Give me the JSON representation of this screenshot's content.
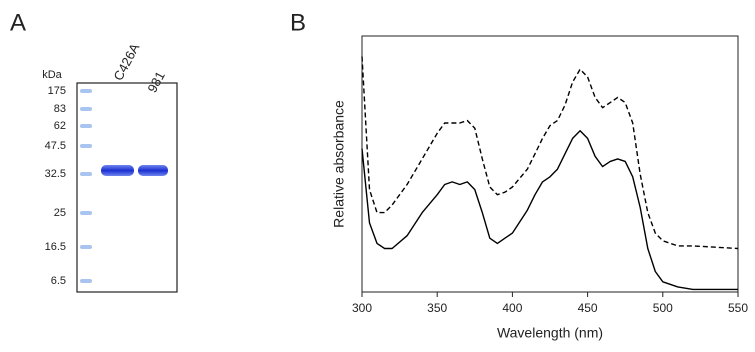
{
  "panel_a": {
    "label": "A",
    "unit": "kDa",
    "markers": [
      "175",
      "83",
      "62",
      "47.5",
      "32.5",
      "25",
      "16.5",
      "6.5"
    ],
    "lanes": [
      "C426A",
      "981"
    ]
  },
  "panel_b_label": "B",
  "chart_data": {
    "type": "line",
    "xlabel": "Wavelength (nm)",
    "ylabel": "Relative absorbance",
    "x": [
      300,
      305,
      310,
      315,
      320,
      330,
      340,
      350,
      355,
      360,
      365,
      370,
      375,
      380,
      385,
      390,
      395,
      400,
      410,
      415,
      420,
      425,
      430,
      435,
      440,
      445,
      450,
      455,
      460,
      465,
      470,
      475,
      480,
      485,
      490,
      495,
      500,
      510,
      520,
      550
    ],
    "series": [
      {
        "color": "#000000",
        "dash": "dashed",
        "values": [
          0.92,
          0.4,
          0.31,
          0.31,
          0.34,
          0.42,
          0.52,
          0.62,
          0.66,
          0.66,
          0.66,
          0.67,
          0.64,
          0.52,
          0.41,
          0.38,
          0.39,
          0.41,
          0.48,
          0.54,
          0.6,
          0.65,
          0.67,
          0.73,
          0.82,
          0.87,
          0.84,
          0.76,
          0.72,
          0.74,
          0.76,
          0.74,
          0.66,
          0.46,
          0.31,
          0.23,
          0.2,
          0.18,
          0.18,
          0.17
        ]
      },
      {
        "color": "#000000",
        "dash": "solid",
        "values": [
          0.56,
          0.27,
          0.19,
          0.17,
          0.17,
          0.22,
          0.31,
          0.38,
          0.42,
          0.43,
          0.42,
          0.43,
          0.4,
          0.31,
          0.21,
          0.19,
          0.21,
          0.23,
          0.32,
          0.38,
          0.43,
          0.45,
          0.48,
          0.54,
          0.6,
          0.63,
          0.6,
          0.53,
          0.49,
          0.51,
          0.52,
          0.51,
          0.45,
          0.33,
          0.17,
          0.08,
          0.04,
          0.02,
          0.01,
          0.01
        ]
      }
    ],
    "xlim": [
      300,
      550
    ],
    "xticks": [
      300,
      350,
      400,
      450,
      500,
      550
    ],
    "ylim": [
      0,
      1
    ]
  }
}
